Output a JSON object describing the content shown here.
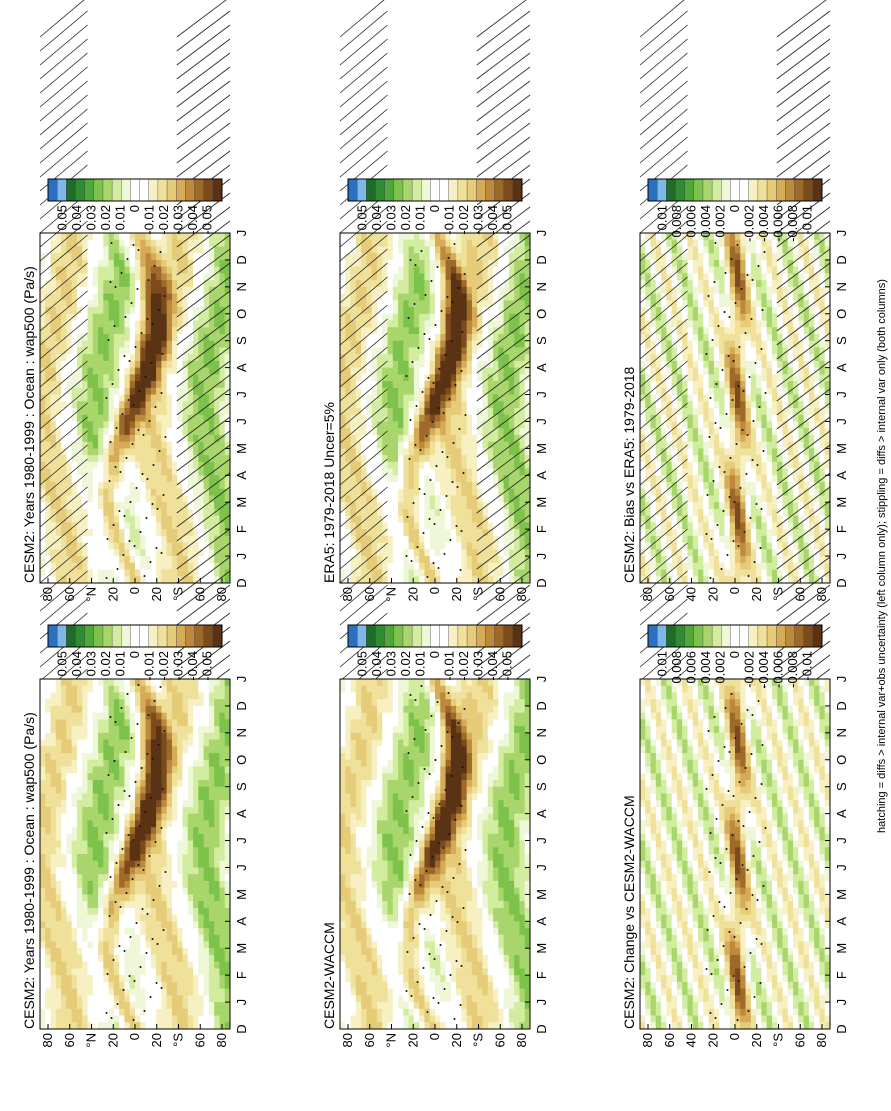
{
  "footer": "hatching = diffs > internal var+obs uncertainty (left column only); stippling = diffs > internal var only (both columns)",
  "chart_data": [
    {
      "type": "heatmap",
      "title": "CESM2: Years 1980-1999 : Ocean : wap500 (Pa/s)",
      "x": [
        "D",
        "J",
        "F",
        "M",
        "A",
        "M",
        "J",
        "J",
        "A",
        "S",
        "O",
        "N",
        "D",
        "J"
      ],
      "y_ticks": [
        "80",
        "60",
        "°N",
        "20",
        "0",
        "20",
        "°S",
        "60",
        "80"
      ],
      "colorbar": [
        "0.05",
        "0.04",
        "0.03",
        "0.02",
        "0.01",
        "0",
        "-0.01",
        "-0.02",
        "-0.03",
        "-0.04",
        "-0.05"
      ],
      "hatching": true,
      "stippling": true
    },
    {
      "type": "heatmap",
      "title": "CESM2: Years 1980-1999 : Ocean : wap500 (Pa/s)",
      "x": [
        "D",
        "J",
        "F",
        "M",
        "A",
        "M",
        "J",
        "J",
        "A",
        "S",
        "O",
        "N",
        "D",
        "J"
      ],
      "y_ticks": [
        "80",
        "60",
        "°N",
        "20",
        "0",
        "20",
        "°S",
        "60",
        "80"
      ],
      "colorbar": [
        "0.05",
        "0.04",
        "0.03",
        "0.02",
        "0.01",
        "0",
        "-0.01",
        "-0.02",
        "-0.03",
        "-0.04",
        "-0.05"
      ],
      "hatching": false,
      "stippling": true
    },
    {
      "type": "heatmap",
      "title": "ERA5: 1979-2018 Uncer=5%",
      "x": [
        "D",
        "J",
        "F",
        "M",
        "A",
        "M",
        "J",
        "J",
        "A",
        "S",
        "O",
        "N",
        "D",
        "J"
      ],
      "y_ticks": [
        "80",
        "60",
        "°N",
        "20",
        "0",
        "20",
        "°S",
        "60",
        "80"
      ],
      "colorbar": [
        "0.05",
        "0.04",
        "0.03",
        "0.02",
        "0.01",
        "0",
        "-0.01",
        "-0.02",
        "-0.03",
        "-0.04",
        "-0.05"
      ],
      "hatching": true,
      "stippling": true
    },
    {
      "type": "heatmap",
      "title": "CESM2-WACCM",
      "x": [
        "D",
        "J",
        "F",
        "M",
        "A",
        "M",
        "J",
        "J",
        "A",
        "S",
        "O",
        "N",
        "D",
        "J"
      ],
      "y_ticks": [
        "80",
        "60",
        "°N",
        "20",
        "0",
        "20",
        "°S",
        "60",
        "80"
      ],
      "colorbar": [
        "0.05",
        "0.04",
        "0.03",
        "0.02",
        "0.01",
        "0",
        "-0.01",
        "-0.02",
        "-0.03",
        "-0.04",
        "-0.05"
      ],
      "hatching": false,
      "stippling": true
    },
    {
      "type": "heatmap",
      "title": "CESM2: Bias vs ERA5: 1979-2018",
      "x": [
        "D",
        "J",
        "F",
        "M",
        "A",
        "M",
        "J",
        "J",
        "A",
        "S",
        "O",
        "N",
        "D",
        "J"
      ],
      "y_ticks": [
        "80",
        "60",
        "40",
        "20",
        "0",
        "20",
        "°S",
        "60",
        "80"
      ],
      "colorbar": [
        "0.01",
        "0.008",
        "0.006",
        "0.004",
        "0.002",
        "0",
        "-0.002",
        "-0.004",
        "-0.006",
        "-0.008",
        "-0.01"
      ],
      "hatching": true,
      "stippling": true
    },
    {
      "type": "heatmap",
      "title": "CESM2: Change vs CESM2-WACCM",
      "x": [
        "D",
        "J",
        "F",
        "M",
        "A",
        "M",
        "J",
        "J",
        "A",
        "S",
        "O",
        "N",
        "D",
        "J"
      ],
      "y_ticks": [
        "80",
        "60",
        "40",
        "20",
        "0",
        "20",
        "°S",
        "60",
        "80"
      ],
      "colorbar": [
        "0.01",
        "0.008",
        "0.006",
        "0.004",
        "0.002",
        "0",
        "-0.002",
        "-0.004",
        "-0.006",
        "-0.008",
        "-0.01"
      ],
      "hatching": false,
      "stippling": true
    }
  ]
}
